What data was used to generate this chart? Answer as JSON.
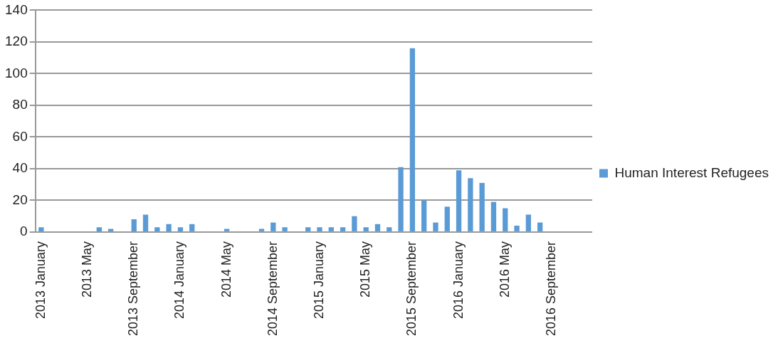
{
  "chart_data": {
    "type": "bar",
    "categories": [
      "2013 January",
      null,
      null,
      null,
      "2013 May",
      null,
      null,
      null,
      "2013 September",
      null,
      null,
      null,
      "2014 January",
      null,
      null,
      null,
      "2014 May",
      null,
      null,
      null,
      "2014 September",
      null,
      null,
      null,
      "2015 January",
      null,
      null,
      null,
      "2015 May",
      null,
      null,
      null,
      "2015 September",
      null,
      null,
      null,
      "2016 January",
      null,
      null,
      null,
      "2016 May",
      null,
      null,
      null,
      "2016 September",
      null,
      null,
      null
    ],
    "series": [
      {
        "name": "Human Interest Refugees",
        "color": "#5b9bd5",
        "values": [
          3,
          0,
          0,
          0,
          0,
          3,
          2,
          0,
          8,
          11,
          3,
          5,
          3,
          5,
          0,
          0,
          2,
          0,
          0,
          2,
          6,
          3,
          0,
          3,
          3,
          3,
          3,
          10,
          3,
          5,
          3,
          41,
          116,
          20,
          6,
          16,
          39,
          34,
          31,
          19,
          15,
          4,
          11,
          6,
          0,
          0,
          0,
          0
        ]
      }
    ],
    "ylim": [
      0,
      140
    ],
    "yticks": [
      0,
      20,
      40,
      60,
      80,
      100,
      120,
      140
    ],
    "grid": "y",
    "legend": "right"
  }
}
